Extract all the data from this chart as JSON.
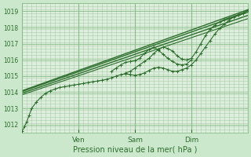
{
  "xlabel": "Pression niveau de la mer( hPa )",
  "bg_color": "#cce8cc",
  "plot_bg_color": "#ddeedd",
  "grid_color": "#aaccaa",
  "line_color": "#2d6e2d",
  "ylim": [
    1011.5,
    1019.5
  ],
  "yticks": [
    1012,
    1013,
    1014,
    1015,
    1016,
    1017,
    1018,
    1019
  ],
  "xlim": [
    0,
    96
  ],
  "xtick_positions": [
    24,
    48,
    72
  ],
  "xtick_labels": [
    "Ven",
    "Sam",
    "Dim"
  ],
  "lines": [
    {
      "x": [
        0,
        1,
        2,
        3,
        4,
        6,
        8,
        10,
        12,
        14,
        16,
        18,
        20,
        22,
        24,
        26,
        28,
        30,
        32,
        34,
        36,
        38,
        40,
        42,
        44,
        46,
        48,
        50,
        52,
        54,
        56,
        58,
        60,
        62,
        64,
        66,
        68,
        70,
        72,
        74,
        76,
        78,
        80,
        82,
        84,
        86,
        88,
        90,
        92,
        94,
        96
      ],
      "y": [
        1011.6,
        1011.9,
        1012.2,
        1012.6,
        1013.0,
        1013.4,
        1013.7,
        1013.95,
        1014.1,
        1014.2,
        1014.3,
        1014.35,
        1014.4,
        1014.45,
        1014.5,
        1014.55,
        1014.6,
        1014.65,
        1014.7,
        1014.75,
        1014.8,
        1014.9,
        1015.0,
        1015.1,
        1015.15,
        1015.1,
        1015.05,
        1015.1,
        1015.2,
        1015.35,
        1015.5,
        1015.55,
        1015.5,
        1015.4,
        1015.3,
        1015.3,
        1015.4,
        1015.5,
        1015.7,
        1016.0,
        1016.4,
        1016.8,
        1017.2,
        1017.6,
        1017.95,
        1018.2,
        1018.45,
        1018.65,
        1018.8,
        1018.9,
        1019.05
      ],
      "marker": "+",
      "linewidth": 0.8,
      "markersize": 3,
      "zorder": 3
    },
    {
      "x": [
        0,
        96
      ],
      "y": [
        1014.1,
        1019.1
      ],
      "marker": "None",
      "linewidth": 1.0,
      "markersize": 0,
      "zorder": 2
    },
    {
      "x": [
        0,
        96
      ],
      "y": [
        1014.05,
        1018.95
      ],
      "marker": "None",
      "linewidth": 1.0,
      "markersize": 0,
      "zorder": 2
    },
    {
      "x": [
        0,
        96
      ],
      "y": [
        1013.95,
        1018.75
      ],
      "marker": "None",
      "linewidth": 1.0,
      "markersize": 0,
      "zorder": 2
    },
    {
      "x": [
        0,
        96
      ],
      "y": [
        1013.85,
        1018.55
      ],
      "marker": "None",
      "linewidth": 0.8,
      "markersize": 0,
      "zorder": 2
    },
    {
      "x": [
        38,
        40,
        42,
        44,
        46,
        48,
        50,
        52,
        54,
        56,
        58,
        60,
        62,
        64,
        66,
        68,
        70,
        72
      ],
      "y": [
        1015.3,
        1015.5,
        1015.7,
        1015.85,
        1015.9,
        1015.95,
        1016.1,
        1016.4,
        1016.65,
        1016.8,
        1016.6,
        1016.35,
        1016.1,
        1015.9,
        1015.75,
        1015.7,
        1015.75,
        1016.0
      ],
      "marker": "+",
      "linewidth": 0.8,
      "markersize": 3,
      "zorder": 3
    },
    {
      "x": [
        44,
        46,
        48,
        50,
        52,
        54,
        56,
        58,
        60,
        62,
        64,
        66,
        68,
        70,
        72,
        74,
        76,
        78,
        80,
        82,
        84,
        86,
        88,
        90,
        92,
        94,
        96
      ],
      "y": [
        1015.2,
        1015.3,
        1015.5,
        1015.7,
        1015.9,
        1016.1,
        1016.4,
        1016.65,
        1016.8,
        1016.7,
        1016.55,
        1016.25,
        1016.05,
        1016.0,
        1016.1,
        1016.5,
        1017.0,
        1017.5,
        1017.9,
        1018.15,
        1018.35,
        1018.5,
        1018.6,
        1018.7,
        1018.8,
        1018.9,
        1019.05
      ],
      "marker": "+",
      "linewidth": 0.8,
      "markersize": 3,
      "zorder": 3
    }
  ],
  "figsize": [
    3.2,
    2.0
  ],
  "dpi": 100
}
